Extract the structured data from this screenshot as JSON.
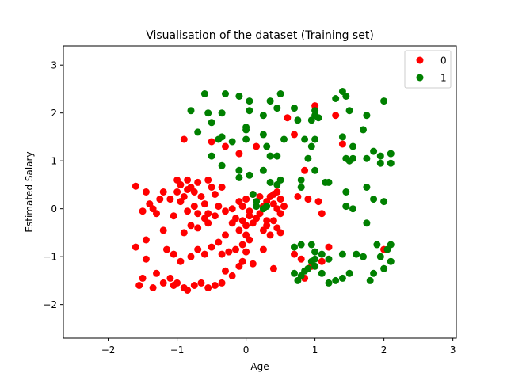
{
  "chart_data": {
    "type": "scatter",
    "title": "Visualisation of the dataset (Training set)",
    "xlabel": "Age",
    "ylabel": "Estimated Salary",
    "xlim": [
      -2.65,
      3.05
    ],
    "ylim": [
      -2.7,
      3.4
    ],
    "xticks": [
      -2,
      -1,
      0,
      1,
      2,
      3
    ],
    "yticks": [
      -2,
      -1,
      0,
      1,
      2,
      3
    ],
    "grid": false,
    "legend_position": "top-right",
    "series": [
      {
        "name": "0",
        "color": "#ff0000",
        "points": [
          [
            -1.6,
            0.47
          ],
          [
            -1.45,
            0.35
          ],
          [
            -1.4,
            0.1
          ],
          [
            -1.35,
            0.0
          ],
          [
            -1.5,
            -0.05
          ],
          [
            -1.3,
            -0.1
          ],
          [
            -1.2,
            0.35
          ],
          [
            -1.1,
            0.2
          ],
          [
            -1.05,
            -0.15
          ],
          [
            -1.2,
            -0.45
          ],
          [
            -1.45,
            -0.65
          ],
          [
            -1.6,
            -0.8
          ],
          [
            -1.45,
            -1.05
          ],
          [
            -1.3,
            -1.35
          ],
          [
            -1.5,
            -1.45
          ],
          [
            -1.55,
            -1.6
          ],
          [
            -1.35,
            -1.65
          ],
          [
            -1.2,
            -1.55
          ],
          [
            -1.1,
            -1.45
          ],
          [
            -1.05,
            -1.6
          ],
          [
            -1.0,
            -1.55
          ],
          [
            -0.9,
            -1.65
          ],
          [
            -0.85,
            -1.7
          ],
          [
            -0.75,
            -1.6
          ],
          [
            -0.65,
            -1.55
          ],
          [
            -0.55,
            -1.65
          ],
          [
            -0.45,
            -1.6
          ],
          [
            -0.35,
            -1.55
          ],
          [
            -0.3,
            -1.3
          ],
          [
            -0.2,
            -1.4
          ],
          [
            -0.1,
            -1.2
          ],
          [
            -0.05,
            -1.1
          ],
          [
            0.1,
            -1.15
          ],
          [
            -0.9,
            1.45
          ],
          [
            -0.5,
            1.4
          ],
          [
            -0.3,
            1.3
          ],
          [
            -0.1,
            1.15
          ],
          [
            0.15,
            1.3
          ],
          [
            -1.0,
            0.6
          ],
          [
            -0.95,
            0.5
          ],
          [
            -0.85,
            0.6
          ],
          [
            -0.8,
            0.45
          ],
          [
            -0.75,
            0.35
          ],
          [
            -0.7,
            0.55
          ],
          [
            -0.65,
            0.25
          ],
          [
            -0.55,
            0.6
          ],
          [
            -0.5,
            0.45
          ],
          [
            -0.45,
            0.3
          ],
          [
            -0.6,
            0.1
          ],
          [
            -0.75,
            0.05
          ],
          [
            -0.85,
            -0.05
          ],
          [
            -0.95,
            0.15
          ],
          [
            -1.0,
            0.35
          ],
          [
            -0.9,
            0.25
          ],
          [
            -0.7,
            -0.1
          ],
          [
            -0.6,
            -0.2
          ],
          [
            -0.8,
            -0.35
          ],
          [
            -0.9,
            -0.5
          ],
          [
            -0.7,
            -0.4
          ],
          [
            -0.55,
            -0.3
          ],
          [
            -0.45,
            -0.15
          ],
          [
            -0.4,
            0.05
          ],
          [
            -0.3,
            -0.05
          ],
          [
            -0.2,
            0.0
          ],
          [
            -0.1,
            0.15
          ],
          [
            -0.15,
            -0.2
          ],
          [
            -0.05,
            -0.25
          ],
          [
            0.0,
            -0.35
          ],
          [
            -0.1,
            -0.45
          ],
          [
            0.0,
            -0.55
          ],
          [
            0.05,
            -0.65
          ],
          [
            -0.05,
            -0.75
          ],
          [
            0.1,
            -0.3
          ],
          [
            0.15,
            -0.2
          ],
          [
            0.2,
            -0.1
          ],
          [
            0.25,
            0.05
          ],
          [
            0.3,
            0.15
          ],
          [
            0.35,
            0.25
          ],
          [
            0.4,
            0.1
          ],
          [
            0.45,
            0.0
          ],
          [
            0.5,
            -0.1
          ],
          [
            0.4,
            -0.25
          ],
          [
            0.3,
            -0.35
          ],
          [
            0.25,
            -0.45
          ],
          [
            0.35,
            -0.55
          ],
          [
            0.45,
            -0.4
          ],
          [
            0.5,
            -0.5
          ],
          [
            0.4,
            0.3
          ],
          [
            0.5,
            0.2
          ],
          [
            0.45,
            0.35
          ],
          [
            0.2,
            0.25
          ],
          [
            0.1,
            0.3
          ],
          [
            0.0,
            0.2
          ],
          [
            -0.05,
            0.05
          ],
          [
            0.05,
            -0.05
          ],
          [
            -0.2,
            -0.3
          ],
          [
            -0.3,
            -0.55
          ],
          [
            -0.4,
            -0.7
          ],
          [
            -0.5,
            -0.8
          ],
          [
            -0.6,
            -0.95
          ],
          [
            -0.7,
            -0.85
          ],
          [
            -0.8,
            -1.0
          ],
          [
            -0.95,
            -1.1
          ],
          [
            -1.05,
            -0.95
          ],
          [
            -1.15,
            -0.85
          ],
          [
            -0.35,
            -0.95
          ],
          [
            -0.25,
            -0.9
          ],
          [
            -0.15,
            -0.85
          ],
          [
            0.0,
            -0.9
          ],
          [
            0.25,
            -0.85
          ],
          [
            0.4,
            -1.25
          ],
          [
            0.7,
            -0.95
          ],
          [
            0.8,
            -1.05
          ],
          [
            0.85,
            -1.45
          ],
          [
            0.95,
            -1.2
          ],
          [
            1.2,
            -0.8
          ],
          [
            1.1,
            -1.1
          ],
          [
            0.75,
            0.25
          ],
          [
            0.85,
            0.8
          ],
          [
            0.9,
            0.2
          ],
          [
            1.05,
            0.15
          ],
          [
            1.1,
            -0.1
          ],
          [
            0.7,
            1.55
          ],
          [
            0.6,
            1.9
          ],
          [
            1.0,
            2.15
          ],
          [
            1.3,
            1.95
          ],
          [
            1.4,
            1.35
          ],
          [
            2.0,
            -0.85
          ],
          [
            -0.55,
            -0.1
          ],
          [
            -0.85,
            0.4
          ],
          [
            -1.25,
            0.2
          ],
          [
            -0.35,
            0.45
          ],
          [
            0.05,
            -0.15
          ],
          [
            0.3,
            -0.25
          ],
          [
            0.55,
            0.05
          ]
        ]
      },
      {
        "name": "1",
        "color": "#008000",
        "points": [
          [
            -0.6,
            2.4
          ],
          [
            -0.3,
            2.4
          ],
          [
            -0.1,
            2.35
          ],
          [
            0.05,
            2.25
          ],
          [
            0.35,
            2.25
          ],
          [
            0.5,
            2.4
          ],
          [
            -0.8,
            2.05
          ],
          [
            -0.55,
            2.0
          ],
          [
            -0.35,
            2.0
          ],
          [
            0.05,
            2.05
          ],
          [
            0.25,
            1.95
          ],
          [
            0.45,
            2.1
          ],
          [
            0.7,
            2.1
          ],
          [
            0.95,
            1.85
          ],
          [
            1.0,
            1.95
          ],
          [
            1.0,
            2.05
          ],
          [
            1.3,
            2.3
          ],
          [
            1.4,
            2.45
          ],
          [
            1.45,
            2.35
          ],
          [
            1.5,
            2.05
          ],
          [
            1.75,
            1.95
          ],
          [
            2.0,
            2.25
          ],
          [
            -0.7,
            1.6
          ],
          [
            -0.5,
            1.8
          ],
          [
            -0.4,
            1.45
          ],
          [
            -0.35,
            1.5
          ],
          [
            -0.2,
            1.4
          ],
          [
            0.0,
            1.7
          ],
          [
            0.0,
            1.65
          ],
          [
            0.0,
            1.45
          ],
          [
            0.25,
            1.55
          ],
          [
            0.3,
            1.3
          ],
          [
            0.35,
            1.1
          ],
          [
            0.45,
            1.1
          ],
          [
            0.75,
            1.85
          ],
          [
            0.85,
            1.45
          ],
          [
            0.95,
            1.3
          ],
          [
            1.0,
            1.45
          ],
          [
            1.05,
            1.9
          ],
          [
            1.4,
            1.5
          ],
          [
            1.55,
            1.3
          ],
          [
            1.7,
            1.65
          ],
          [
            1.85,
            1.2
          ],
          [
            1.95,
            1.1
          ],
          [
            -0.5,
            1.1
          ],
          [
            -0.35,
            0.9
          ],
          [
            -0.1,
            0.8
          ],
          [
            -0.1,
            0.65
          ],
          [
            0.05,
            0.7
          ],
          [
            0.1,
            0.3
          ],
          [
            0.25,
            0.8
          ],
          [
            0.45,
            0.5
          ],
          [
            0.8,
            0.6
          ],
          [
            0.8,
            0.45
          ],
          [
            1.0,
            0.8
          ],
          [
            1.15,
            0.55
          ],
          [
            1.2,
            0.55
          ],
          [
            1.45,
            1.05
          ],
          [
            1.5,
            1.0
          ],
          [
            1.55,
            1.05
          ],
          [
            1.75,
            1.05
          ],
          [
            1.95,
            0.95
          ],
          [
            2.1,
            1.15
          ],
          [
            2.1,
            0.95
          ],
          [
            1.45,
            0.35
          ],
          [
            1.45,
            0.05
          ],
          [
            1.55,
            0.0
          ],
          [
            1.75,
            0.45
          ],
          [
            1.85,
            0.2
          ],
          [
            2.0,
            0.15
          ],
          [
            1.75,
            -0.3
          ],
          [
            1.9,
            -0.75
          ],
          [
            2.1,
            -0.75
          ],
          [
            2.05,
            -0.85
          ],
          [
            1.95,
            -1.0
          ],
          [
            2.1,
            -1.1
          ],
          [
            2.0,
            -1.25
          ],
          [
            1.85,
            -1.35
          ],
          [
            1.7,
            -1.0
          ],
          [
            1.6,
            -0.95
          ],
          [
            1.4,
            -0.95
          ],
          [
            1.4,
            -1.45
          ],
          [
            1.3,
            -1.5
          ],
          [
            1.2,
            -1.55
          ],
          [
            1.1,
            -1.35
          ],
          [
            1.0,
            -1.2
          ],
          [
            1.0,
            -1.05
          ],
          [
            0.95,
            -1.1
          ],
          [
            0.9,
            -1.25
          ],
          [
            0.85,
            -1.3
          ],
          [
            0.8,
            -1.4
          ],
          [
            0.75,
            -1.5
          ],
          [
            0.7,
            -1.35
          ],
          [
            0.7,
            -0.8
          ],
          [
            0.8,
            -0.75
          ],
          [
            0.95,
            -0.75
          ],
          [
            1.0,
            -0.9
          ],
          [
            1.1,
            -0.95
          ],
          [
            1.2,
            -1.05
          ],
          [
            1.5,
            -1.35
          ],
          [
            1.8,
            -1.5
          ],
          [
            0.3,
            0.05
          ],
          [
            0.25,
            0.0
          ],
          [
            0.15,
            0.15
          ],
          [
            0.15,
            0.05
          ],
          [
            0.35,
            0.55
          ],
          [
            0.5,
            0.6
          ],
          [
            0.55,
            1.45
          ],
          [
            0.9,
            1.05
          ]
        ]
      }
    ]
  }
}
